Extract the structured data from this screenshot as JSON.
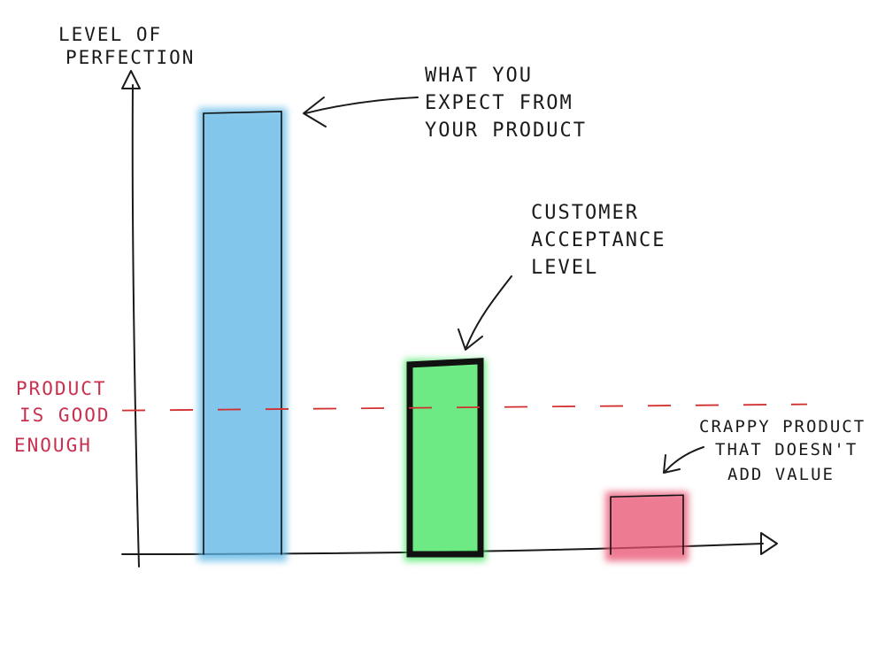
{
  "chart_data": {
    "type": "bar",
    "y_axis_label_lines": [
      "LEVEL OF",
      "PERFECTION"
    ],
    "x_axis_label": "",
    "ylim": [
      0,
      100
    ],
    "grid": false,
    "legend": "none",
    "bars": [
      {
        "id": "expected",
        "value": 100,
        "fill": "#5ab4e5",
        "annotation_lines": [
          "WHAT YOU",
          "EXPECT FROM",
          "YOUR PRODUCT"
        ]
      },
      {
        "id": "acceptance",
        "value": 43,
        "fill": "#3ee35c",
        "annotation_lines": [
          "CUSTOMER",
          "ACCEPTANCE",
          "LEVEL"
        ]
      },
      {
        "id": "crappy",
        "value": 13,
        "fill": "#e8506e",
        "annotation_lines": [
          "CRAPPY PRODUCT",
          "THAT DOESN'T",
          "ADD VALUE"
        ]
      }
    ],
    "threshold": {
      "value": 33,
      "color": "#d23030",
      "label_lines": [
        "PRODUCT",
        "IS GOOD",
        "ENOUGH"
      ],
      "label_color": "#c8304e"
    }
  }
}
